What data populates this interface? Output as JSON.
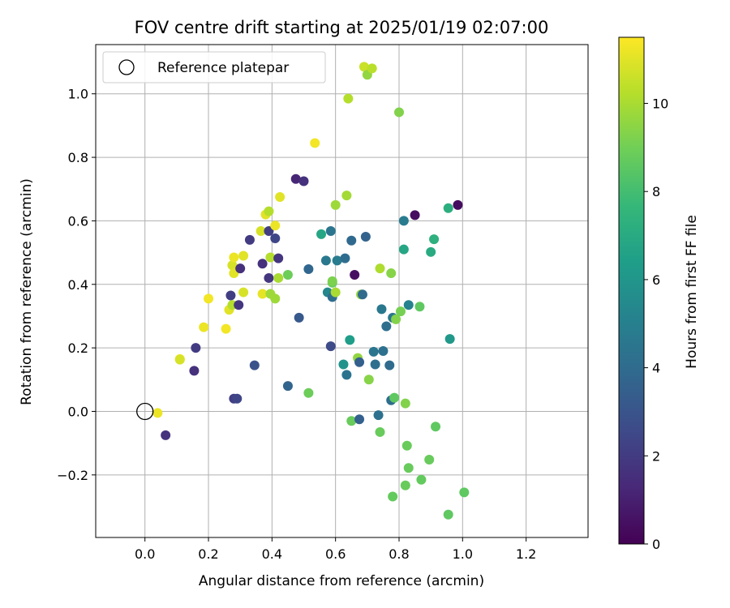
{
  "chart_data": {
    "type": "scatter",
    "title": "FOV centre drift starting at 2025/01/19 02:07:00",
    "xlabel": "Angular distance from reference (arcmin)",
    "ylabel": "Rotation from reference (arcmin)",
    "xlim": [
      -0.155,
      1.395
    ],
    "ylim": [
      -0.397,
      1.155
    ],
    "xticks": [
      0.0,
      0.2,
      0.4,
      0.6,
      0.8,
      1.0,
      1.2
    ],
    "xtick_labels": [
      "0.0",
      "0.2",
      "0.4",
      "0.6",
      "0.8",
      "1.0",
      "1.2"
    ],
    "yticks": [
      -0.2,
      0.0,
      0.2,
      0.4,
      0.6,
      0.8,
      1.0
    ],
    "ytick_labels": [
      "−0.2",
      "0.0",
      "0.2",
      "0.4",
      "0.6",
      "0.8",
      "1.0"
    ],
    "grid": true,
    "legend": {
      "placement": "upper-left",
      "entries": [
        "Reference platepar"
      ]
    },
    "reference_point": {
      "x": 0.0,
      "y": 0.0,
      "label": "Reference platepar"
    },
    "colorbar": {
      "label": "Hours from first FF file",
      "colormap": "viridis",
      "range": [
        0,
        11.5
      ],
      "ticks": [
        0,
        2,
        4,
        6,
        8,
        10
      ],
      "tick_labels": [
        "0",
        "2",
        "4",
        "6",
        "8",
        "10"
      ]
    },
    "points": [
      [
        0.04,
        -0.005,
        11.2
      ],
      [
        0.065,
        -0.075,
        1.7
      ],
      [
        0.11,
        0.165,
        11.3
      ],
      [
        0.11,
        0.163,
        10.8
      ],
      [
        0.155,
        0.128,
        1.6
      ],
      [
        0.16,
        0.2,
        2.0
      ],
      [
        0.2,
        0.355,
        11.3
      ],
      [
        0.185,
        0.265,
        11.2
      ],
      [
        0.255,
        0.26,
        11.3
      ],
      [
        0.265,
        0.32,
        11.0
      ],
      [
        0.27,
        0.365,
        2.1
      ],
      [
        0.275,
        0.46,
        10.8
      ],
      [
        0.28,
        0.485,
        11.2
      ],
      [
        0.28,
        0.435,
        11.0
      ],
      [
        0.275,
        0.335,
        10.2
      ],
      [
        0.28,
        0.04,
        2.1
      ],
      [
        0.29,
        0.04,
        2.4
      ],
      [
        0.295,
        0.335,
        1.8
      ],
      [
        0.3,
        0.45,
        1.6
      ],
      [
        0.31,
        0.49,
        11.0
      ],
      [
        0.31,
        0.375,
        10.8
      ],
      [
        0.33,
        0.54,
        2.0
      ],
      [
        0.345,
        0.145,
        2.9
      ],
      [
        0.365,
        0.568,
        10.8
      ],
      [
        0.37,
        0.465,
        1.6
      ],
      [
        0.37,
        0.37,
        11.1
      ],
      [
        0.38,
        0.62,
        11.0
      ],
      [
        0.39,
        0.63,
        10.2
      ],
      [
        0.39,
        0.568,
        2.1
      ],
      [
        0.39,
        0.42,
        1.8
      ],
      [
        0.395,
        0.485,
        10.2
      ],
      [
        0.395,
        0.37,
        9.8
      ],
      [
        0.41,
        0.545,
        2.4
      ],
      [
        0.41,
        0.585,
        11.2
      ],
      [
        0.41,
        0.355,
        9.8
      ],
      [
        0.42,
        0.482,
        1.8
      ],
      [
        0.42,
        0.42,
        10.0
      ],
      [
        0.425,
        0.675,
        11.0
      ],
      [
        0.45,
        0.43,
        8.9
      ],
      [
        0.45,
        0.08,
        3.7
      ],
      [
        0.475,
        0.732,
        1.2
      ],
      [
        0.485,
        0.295,
        3.2
      ],
      [
        0.5,
        0.725,
        1.6
      ],
      [
        0.515,
        0.448,
        3.8
      ],
      [
        0.515,
        0.058,
        8.9
      ],
      [
        0.535,
        0.845,
        11.3
      ],
      [
        0.555,
        0.558,
        6.8
      ],
      [
        0.57,
        0.475,
        4.6
      ],
      [
        0.575,
        0.375,
        5.3
      ],
      [
        0.585,
        0.568,
        4.5
      ],
      [
        0.585,
        0.205,
        2.6
      ],
      [
        0.59,
        0.36,
        4.1
      ],
      [
        0.59,
        0.405,
        8.8
      ],
      [
        0.59,
        0.41,
        9.2
      ],
      [
        0.6,
        0.65,
        9.8
      ],
      [
        0.6,
        0.375,
        10.0
      ],
      [
        0.605,
        0.475,
        4.8
      ],
      [
        0.625,
        0.148,
        5.9
      ],
      [
        0.63,
        0.482,
        4.1
      ],
      [
        0.635,
        0.68,
        9.9
      ],
      [
        0.635,
        0.115,
        4.4
      ],
      [
        0.64,
        0.985,
        10.2
      ],
      [
        0.645,
        0.225,
        6.4
      ],
      [
        0.65,
        0.538,
        3.9
      ],
      [
        0.65,
        -0.03,
        8.8
      ],
      [
        0.66,
        0.43,
        0.5
      ],
      [
        0.67,
        0.168,
        9.6
      ],
      [
        0.675,
        0.155,
        3.5
      ],
      [
        0.675,
        -0.025,
        3.5
      ],
      [
        0.68,
        0.368,
        9.7
      ],
      [
        0.685,
        0.368,
        4.0
      ],
      [
        0.69,
        1.085,
        10.6
      ],
      [
        0.695,
        0.55,
        3.6
      ],
      [
        0.7,
        1.06,
        9.6
      ],
      [
        0.705,
        0.1,
        9.4
      ],
      [
        0.715,
        1.08,
        10.3
      ],
      [
        0.72,
        0.188,
        4.5
      ],
      [
        0.725,
        0.148,
        4.2
      ],
      [
        0.735,
        -0.012,
        4.3
      ],
      [
        0.74,
        0.45,
        10.1
      ],
      [
        0.74,
        -0.065,
        8.8
      ],
      [
        0.745,
        0.322,
        4.6
      ],
      [
        0.75,
        0.19,
        4.3
      ],
      [
        0.76,
        0.268,
        4.2
      ],
      [
        0.77,
        0.145,
        4.0
      ],
      [
        0.775,
        0.035,
        4.1
      ],
      [
        0.775,
        0.435,
        9.4
      ],
      [
        0.78,
        0.295,
        4.5
      ],
      [
        0.78,
        -0.268,
        8.7
      ],
      [
        0.785,
        0.043,
        8.6
      ],
      [
        0.79,
        0.29,
        9.3
      ],
      [
        0.8,
        0.942,
        9.3
      ],
      [
        0.805,
        0.315,
        9.1
      ],
      [
        0.815,
        0.51,
        6.8
      ],
      [
        0.815,
        0.6,
        4.8
      ],
      [
        0.82,
        0.025,
        9.3
      ],
      [
        0.82,
        -0.233,
        8.8
      ],
      [
        0.825,
        -0.108,
        8.8
      ],
      [
        0.83,
        0.335,
        5.1
      ],
      [
        0.83,
        -0.178,
        8.8
      ],
      [
        0.85,
        0.618,
        0.4
      ],
      [
        0.865,
        0.33,
        8.6
      ],
      [
        0.87,
        -0.215,
        8.7
      ],
      [
        0.895,
        -0.152,
        8.8
      ],
      [
        0.9,
        0.502,
        7.0
      ],
      [
        0.91,
        0.542,
        7.3
      ],
      [
        0.915,
        -0.048,
        8.6
      ],
      [
        0.955,
        0.64,
        7.2
      ],
      [
        0.955,
        -0.325,
        8.6
      ],
      [
        0.96,
        0.228,
        6.1
      ],
      [
        0.985,
        0.65,
        0.4
      ],
      [
        1.005,
        -0.255,
        8.6
      ]
    ]
  }
}
